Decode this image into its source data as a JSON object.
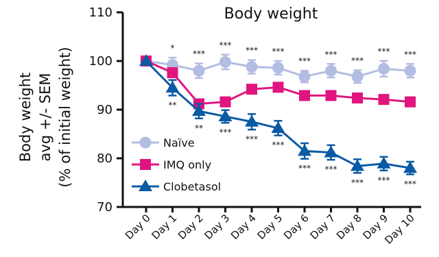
{
  "chart_data": {
    "type": "line",
    "title": "Body weight",
    "ylabel_lines": [
      "Body weight",
      "avg +/- SEM",
      "(% of initial weight)"
    ],
    "xlabel": "",
    "categories": [
      "Day 0",
      "Day 1",
      "Day 2",
      "Day 3",
      "Day 4",
      "Day 5",
      "Day 6",
      "Day 7",
      "Day 8",
      "Day 9",
      "Day 10"
    ],
    "ylim": [
      70,
      110
    ],
    "yticks": [
      70,
      80,
      90,
      100,
      110
    ],
    "grid": false,
    "legend_position": "bottom-left",
    "series": [
      {
        "name": "Naïve",
        "color": "#b3bde1",
        "marker": "circle",
        "values": [
          100,
          99.2,
          98.0,
          99.8,
          98.8,
          98.6,
          96.8,
          98.0,
          96.8,
          98.4,
          98.0
        ],
        "error": [
          0,
          1.5,
          1.5,
          1.5,
          1.4,
          1.4,
          1.2,
          1.4,
          1.3,
          1.6,
          1.4
        ],
        "annotations": [
          "",
          "*",
          "***",
          "***",
          "***",
          "***",
          "***",
          "***",
          "***",
          "***",
          "***"
        ],
        "annotation_pos": "above"
      },
      {
        "name": "IMQ only",
        "color": "#e0157f",
        "marker": "square",
        "values": [
          100,
          97.6,
          91.2,
          91.6,
          94.2,
          94.6,
          92.9,
          92.9,
          92.4,
          92.1,
          91.6
        ],
        "error": [
          0,
          0.6,
          0.6,
          0.6,
          0.6,
          0.6,
          0.6,
          0.6,
          0.6,
          0.6,
          0.6
        ],
        "annotations": [],
        "annotation_pos": "none"
      },
      {
        "name": "Clobetasol",
        "color": "#0a5aa4",
        "marker": "triangle",
        "values": [
          100,
          94.5,
          89.7,
          88.6,
          87.5,
          86.2,
          81.5,
          81.2,
          78.4,
          78.9,
          78.0
        ],
        "error": [
          0,
          1.6,
          1.5,
          1.3,
          1.6,
          1.5,
          1.6,
          1.5,
          1.4,
          1.4,
          1.3
        ],
        "annotations": [
          "",
          "**",
          "**",
          "***",
          "***",
          "***",
          "***",
          "***",
          "***",
          "***",
          "***"
        ],
        "annotation_pos": "below"
      }
    ]
  }
}
